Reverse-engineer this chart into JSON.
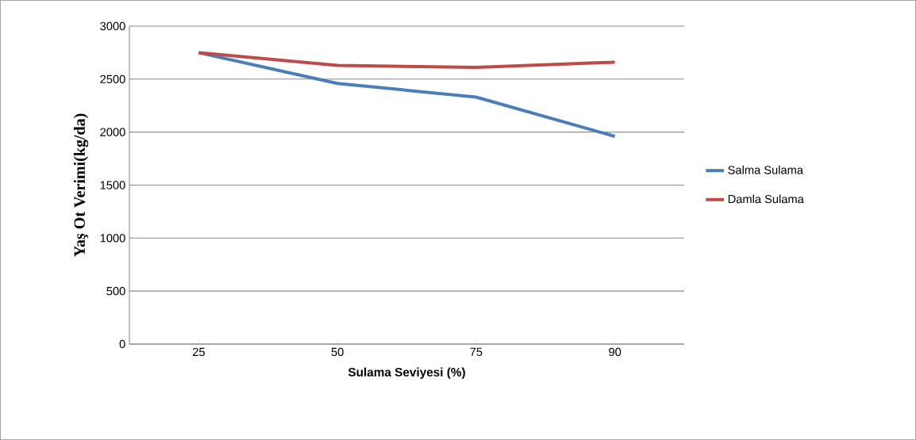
{
  "chart_data": {
    "type": "line",
    "xlabel": "Sulama Seviyesi (%)",
    "ylabel": "Yaş Ot Verimi(kg/da)",
    "categories": [
      "25",
      "50",
      "75",
      "90"
    ],
    "series": [
      {
        "name": "Salma Sulama",
        "color": "#4a7ebb",
        "values": [
          2750,
          2460,
          2330,
          1960
        ]
      },
      {
        "name": "Damla Sulama",
        "color": "#be4b48",
        "values": [
          2750,
          2630,
          2610,
          2660
        ]
      }
    ],
    "ylim": [
      0,
      3000
    ],
    "yticks": [
      0,
      500,
      1000,
      1500,
      2000,
      2500,
      3000
    ],
    "grid": "y",
    "legend": "right",
    "marker": "none",
    "line_style": "solid"
  }
}
